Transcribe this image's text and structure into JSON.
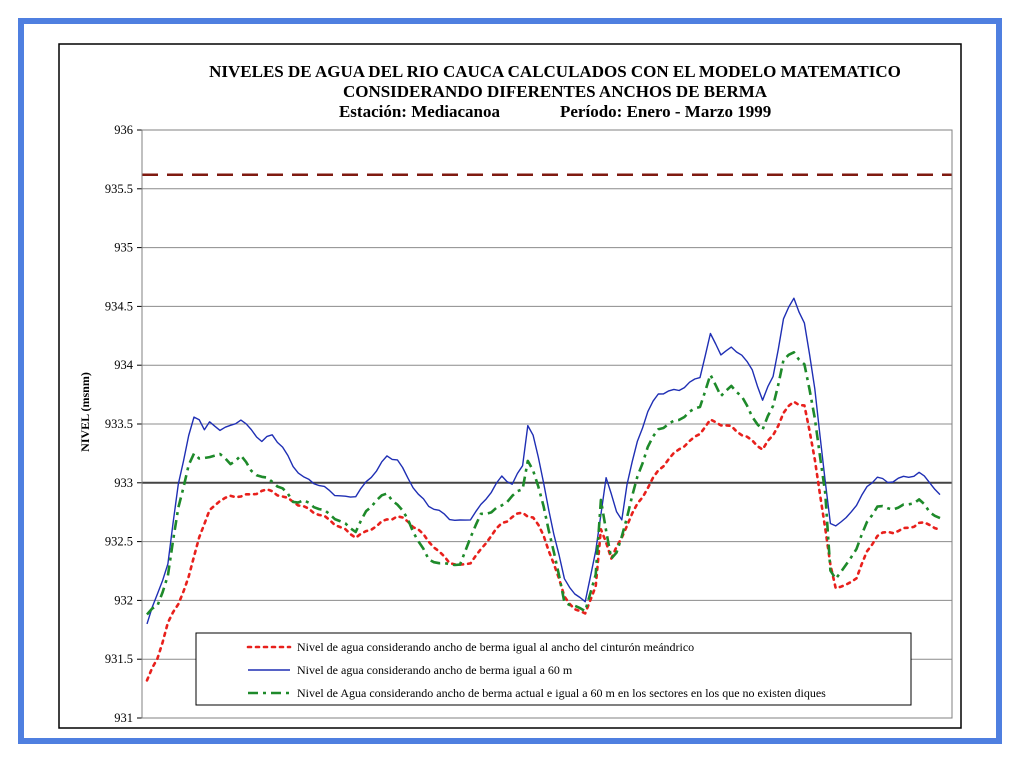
{
  "chart_data": {
    "type": "line",
    "title_lines": [
      "NIVELES DE AGUA DEL RIO CAUCA CALCULADOS CON EL MODELO MATEMATICO",
      "CONSIDERANDO DIFERENTES ANCHOS DE BERMA"
    ],
    "station_label": "Estación: Mediacanoa",
    "period_label": "Período: Enero - Marzo 1999",
    "ylabel": "NIVEL (msnm)",
    "ylim": [
      931,
      936
    ],
    "yticks": [
      "936",
      "935.5",
      "935",
      "934.5",
      "934",
      "933.5",
      "933",
      "932.5",
      "932",
      "931.5",
      "931"
    ],
    "grid": true,
    "legend_position": "bottom-center inside plot",
    "reference_lines": [
      {
        "value": 935.62,
        "color": "#7f1a10",
        "style": "dashed"
      },
      {
        "value": 933.0,
        "color": "#444444",
        "style": "solid"
      }
    ],
    "x_count": 113,
    "series": [
      {
        "name": "Nivel de agua considerando ancho de berma igual al ancho del cinturón meándrico",
        "color": "#e8201c",
        "style": "dotted",
        "keypoints": [
          [
            0,
            931.32
          ],
          [
            2,
            931.5
          ],
          [
            4,
            931.8
          ],
          [
            6,
            931.98
          ],
          [
            8,
            932.2
          ],
          [
            10,
            932.55
          ],
          [
            12,
            932.75
          ],
          [
            14,
            932.85
          ],
          [
            16,
            932.88
          ],
          [
            18,
            932.9
          ],
          [
            20,
            932.9
          ],
          [
            22,
            932.93
          ],
          [
            24,
            932.92
          ],
          [
            26,
            932.88
          ],
          [
            28,
            932.85
          ],
          [
            30,
            932.8
          ],
          [
            32,
            932.75
          ],
          [
            34,
            932.7
          ],
          [
            36,
            932.65
          ],
          [
            38,
            932.6
          ],
          [
            40,
            932.55
          ],
          [
            42,
            932.58
          ],
          [
            44,
            932.63
          ],
          [
            46,
            932.68
          ],
          [
            48,
            932.72
          ],
          [
            50,
            932.68
          ],
          [
            52,
            932.6
          ],
          [
            54,
            932.5
          ],
          [
            56,
            932.4
          ],
          [
            58,
            932.33
          ],
          [
            60,
            932.3
          ],
          [
            62,
            932.33
          ],
          [
            64,
            932.42
          ],
          [
            66,
            932.55
          ],
          [
            68,
            932.65
          ],
          [
            70,
            932.72
          ],
          [
            72,
            932.75
          ],
          [
            74,
            932.7
          ],
          [
            76,
            932.55
          ],
          [
            78,
            932.3
          ],
          [
            80,
            932.05
          ],
          [
            82,
            931.92
          ],
          [
            84,
            931.9
          ],
          [
            86,
            932.1
          ],
          [
            87,
            932.6
          ],
          [
            88,
            932.5
          ],
          [
            89,
            932.35
          ],
          [
            90,
            932.45
          ],
          [
            92,
            932.65
          ],
          [
            94,
            932.82
          ],
          [
            96,
            932.95
          ],
          [
            98,
            933.1
          ],
          [
            100,
            933.2
          ],
          [
            102,
            933.3
          ],
          [
            104,
            933.35
          ],
          [
            106,
            933.42
          ],
          [
            108,
            933.52
          ],
          [
            110,
            933.5
          ],
          [
            112,
            933.48
          ],
          [
            114,
            933.42
          ],
          [
            116,
            933.35
          ],
          [
            118,
            933.28
          ],
          [
            120,
            933.4
          ],
          [
            122,
            933.6
          ],
          [
            124,
            933.7
          ],
          [
            126,
            933.65
          ],
          [
            128,
            933.2
          ],
          [
            130,
            932.6
          ],
          [
            131,
            932.3
          ],
          [
            132,
            932.12
          ],
          [
            134,
            932.13
          ],
          [
            136,
            932.2
          ],
          [
            138,
            932.4
          ],
          [
            140,
            932.55
          ],
          [
            142,
            932.58
          ],
          [
            144,
            932.6
          ],
          [
            146,
            932.62
          ],
          [
            148,
            932.65
          ],
          [
            150,
            932.64
          ],
          [
            152,
            932.6
          ]
        ]
      },
      {
        "name": "Nivel de agua considerando ancho de berma igual a  60 m",
        "color": "#1f2fb4",
        "style": "solid",
        "keypoints": [
          [
            0,
            931.8
          ],
          [
            2,
            932.05
          ],
          [
            4,
            932.3
          ],
          [
            6,
            933.0
          ],
          [
            8,
            933.4
          ],
          [
            9,
            933.56
          ],
          [
            10,
            933.55
          ],
          [
            11,
            933.45
          ],
          [
            12,
            933.5
          ],
          [
            14,
            933.45
          ],
          [
            16,
            933.48
          ],
          [
            18,
            933.55
          ],
          [
            20,
            933.45
          ],
          [
            22,
            933.35
          ],
          [
            24,
            933.4
          ],
          [
            26,
            933.3
          ],
          [
            28,
            933.15
          ],
          [
            30,
            933.05
          ],
          [
            32,
            933.0
          ],
          [
            34,
            932.95
          ],
          [
            36,
            932.9
          ],
          [
            38,
            932.88
          ],
          [
            40,
            932.9
          ],
          [
            42,
            933.0
          ],
          [
            44,
            933.1
          ],
          [
            46,
            933.22
          ],
          [
            48,
            933.2
          ],
          [
            50,
            933.05
          ],
          [
            52,
            932.9
          ],
          [
            54,
            932.8
          ],
          [
            56,
            932.75
          ],
          [
            58,
            932.7
          ],
          [
            60,
            932.68
          ],
          [
            62,
            932.7
          ],
          [
            64,
            932.8
          ],
          [
            66,
            932.92
          ],
          [
            68,
            933.05
          ],
          [
            70,
            933.0
          ],
          [
            72,
            933.15
          ],
          [
            73,
            933.5
          ],
          [
            74,
            933.4
          ],
          [
            76,
            933.0
          ],
          [
            78,
            932.55
          ],
          [
            80,
            932.2
          ],
          [
            82,
            932.05
          ],
          [
            84,
            932.0
          ],
          [
            86,
            932.4
          ],
          [
            88,
            933.05
          ],
          [
            90,
            932.75
          ],
          [
            91,
            932.7
          ],
          [
            92,
            933.0
          ],
          [
            94,
            933.35
          ],
          [
            96,
            933.6
          ],
          [
            98,
            933.75
          ],
          [
            100,
            933.78
          ],
          [
            102,
            933.8
          ],
          [
            104,
            933.85
          ],
          [
            106,
            933.9
          ],
          [
            108,
            934.25
          ],
          [
            110,
            934.1
          ],
          [
            112,
            934.15
          ],
          [
            114,
            934.1
          ],
          [
            116,
            933.95
          ],
          [
            118,
            933.7
          ],
          [
            120,
            933.9
          ],
          [
            122,
            934.4
          ],
          [
            124,
            934.58
          ],
          [
            126,
            934.35
          ],
          [
            128,
            933.8
          ],
          [
            130,
            933.0
          ],
          [
            131,
            932.65
          ],
          [
            132,
            932.65
          ],
          [
            134,
            932.7
          ],
          [
            136,
            932.82
          ],
          [
            138,
            932.95
          ],
          [
            140,
            933.05
          ],
          [
            142,
            933.0
          ],
          [
            144,
            933.05
          ],
          [
            146,
            933.05
          ],
          [
            148,
            933.08
          ],
          [
            150,
            933.0
          ],
          [
            152,
            932.9
          ]
        ]
      },
      {
        "name": "Nivel de Agua considerando ancho de berma actual e igual a 60 m en los sectores en los que no existen diques",
        "color": "#1e8a2a",
        "style": "dashdot",
        "keypoints": [
          [
            0,
            931.88
          ],
          [
            2,
            931.95
          ],
          [
            4,
            932.2
          ],
          [
            6,
            932.8
          ],
          [
            8,
            933.15
          ],
          [
            9,
            933.25
          ],
          [
            10,
            933.22
          ],
          [
            12,
            933.2
          ],
          [
            14,
            933.25
          ],
          [
            16,
            933.15
          ],
          [
            18,
            933.25
          ],
          [
            20,
            933.1
          ],
          [
            22,
            933.05
          ],
          [
            24,
            933.0
          ],
          [
            26,
            932.95
          ],
          [
            28,
            932.85
          ],
          [
            30,
            932.85
          ],
          [
            32,
            932.8
          ],
          [
            34,
            932.75
          ],
          [
            36,
            932.7
          ],
          [
            38,
            932.65
          ],
          [
            40,
            932.6
          ],
          [
            42,
            932.75
          ],
          [
            44,
            932.85
          ],
          [
            46,
            932.9
          ],
          [
            48,
            932.82
          ],
          [
            50,
            932.7
          ],
          [
            52,
            932.5
          ],
          [
            54,
            932.35
          ],
          [
            56,
            932.3
          ],
          [
            58,
            932.32
          ],
          [
            60,
            932.3
          ],
          [
            62,
            932.55
          ],
          [
            64,
            932.72
          ],
          [
            66,
            932.75
          ],
          [
            68,
            932.8
          ],
          [
            70,
            932.9
          ],
          [
            72,
            932.95
          ],
          [
            73,
            933.2
          ],
          [
            74,
            933.1
          ],
          [
            76,
            932.8
          ],
          [
            78,
            932.4
          ],
          [
            80,
            932.0
          ],
          [
            82,
            931.95
          ],
          [
            84,
            931.92
          ],
          [
            86,
            932.2
          ],
          [
            87,
            932.85
          ],
          [
            88,
            932.6
          ],
          [
            89,
            932.35
          ],
          [
            90,
            932.4
          ],
          [
            92,
            932.72
          ],
          [
            94,
            933.05
          ],
          [
            96,
            933.3
          ],
          [
            98,
            933.45
          ],
          [
            100,
            933.5
          ],
          [
            102,
            933.55
          ],
          [
            104,
            933.6
          ],
          [
            106,
            933.65
          ],
          [
            108,
            933.9
          ],
          [
            110,
            933.75
          ],
          [
            112,
            933.82
          ],
          [
            114,
            933.75
          ],
          [
            116,
            933.55
          ],
          [
            118,
            933.45
          ],
          [
            120,
            933.65
          ],
          [
            122,
            934.05
          ],
          [
            124,
            934.12
          ],
          [
            126,
            934.0
          ],
          [
            128,
            933.55
          ],
          [
            130,
            932.9
          ],
          [
            131,
            932.25
          ],
          [
            132,
            932.2
          ],
          [
            134,
            932.3
          ],
          [
            136,
            932.45
          ],
          [
            138,
            932.65
          ],
          [
            140,
            932.8
          ],
          [
            142,
            932.78
          ],
          [
            144,
            932.8
          ],
          [
            146,
            932.82
          ],
          [
            148,
            932.85
          ],
          [
            150,
            932.75
          ],
          [
            152,
            932.7
          ]
        ]
      }
    ]
  }
}
